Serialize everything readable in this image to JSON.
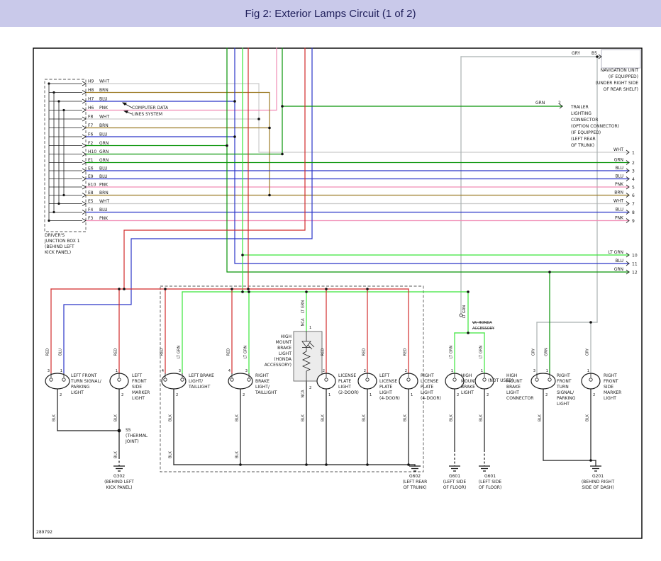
{
  "title": "Fig 2: Exterior Lamps Circuit (1 of 2)",
  "figure_number": "289792",
  "palette": {
    "RED": "#d22b2b",
    "GRN": "#089408",
    "LT GRN": "#3ae53a",
    "BLU": "#2b35c8",
    "PNK": "#f08cb4",
    "BRN": "#9c7b25",
    "WHT": "#cbcbcb",
    "GRY": "#a9b1b1",
    "BLK": "#1c1c1c",
    "header_bg": "#c9c9ea"
  },
  "junction_box": {
    "label": [
      "DRIVER'S",
      "JUNCTION BOX 1",
      "(BEHIND LEFT",
      "KICK PANEL)"
    ],
    "pins": [
      {
        "id": "H9",
        "color": "WHT"
      },
      {
        "id": "H8",
        "color": "BRN"
      },
      {
        "id": "H7",
        "color": "BLU"
      },
      {
        "id": "H6",
        "color": "PNK"
      },
      {
        "id": "F8",
        "color": "WHT"
      },
      {
        "id": "F7",
        "color": "BRN"
      },
      {
        "id": "F6",
        "color": "BLU"
      },
      {
        "id": "F2",
        "color": "GRN"
      },
      {
        "id": "H10",
        "color": "GRN"
      },
      {
        "id": "E1",
        "color": "GRN"
      },
      {
        "id": "E6",
        "color": "BLU"
      },
      {
        "id": "E9",
        "color": "BLU"
      },
      {
        "id": "E10",
        "color": "PNK"
      },
      {
        "id": "E8",
        "color": "BRN"
      },
      {
        "id": "E5",
        "color": "WHT"
      },
      {
        "id": "F4",
        "color": "BLU"
      },
      {
        "id": "F3",
        "color": "PNK"
      }
    ]
  },
  "computer_data_note": [
    "COMPUTER DATA",
    "LINES SYSTEM"
  ],
  "navigation": {
    "wire_color": "GRY",
    "pin": "B5",
    "label": [
      "NAVIGATION UNIT",
      "(IF EQUIPPED)",
      "(UNDER RIGHT SIDE",
      "OF REAR SHELF)"
    ]
  },
  "trailer": {
    "wire_color": "GRN",
    "pin": "2",
    "label": [
      "TRAILER",
      "LIGHTING",
      "CONNECTOR",
      "(OPTION CONNECTOR)",
      "(IF EQUIPPED)",
      "(LEFT REAR",
      "OF TRUNK)"
    ]
  },
  "right_edge_rows": [
    {
      "num": "1",
      "color": "WHT"
    },
    {
      "num": "2",
      "color": "GRN"
    },
    {
      "num": "3",
      "color": "BLU"
    },
    {
      "num": "4",
      "color": "BLU"
    },
    {
      "num": "5",
      "color": "PNK"
    },
    {
      "num": "6",
      "color": "BRN"
    },
    {
      "num": "7",
      "color": "WHT"
    },
    {
      "num": "8",
      "color": "BLU"
    },
    {
      "num": "9",
      "color": "PNK"
    },
    {
      "num": "10",
      "color": "LT GRN"
    },
    {
      "num": "11",
      "color": "BLU"
    },
    {
      "num": "12",
      "color": "GRN"
    }
  ],
  "hmsl_module": {
    "label": [
      "HIGH",
      "MOUNT",
      "BRAKE",
      "LIGHT",
      "(HONDA",
      "ACCESSORY)"
    ],
    "top_pin": "1",
    "bottom_pin": "2",
    "top_wire": "LT GRN",
    "bottom_wire": "BLK",
    "nca": "NCA"
  },
  "lamps": [
    {
      "name": "left-front-turn-signal-parking-light",
      "label": [
        "LEFT FRONT",
        "TURN SIGNAL/",
        "PARKING",
        "LIGHT"
      ],
      "top_pins": [
        {
          "num": "3",
          "wire": "RED"
        },
        {
          "num": "1",
          "wire": "BLU"
        }
      ],
      "bottom_pin": {
        "num": "2",
        "wire": "BLK"
      }
    },
    {
      "name": "left-front-side-marker-light",
      "label": [
        "LEFT",
        "FRONT",
        "SIDE",
        "MARKER",
        "LIGHT"
      ],
      "top_pins": [
        {
          "num": "1",
          "wire": "RED"
        }
      ],
      "bottom_pin": {
        "num": "2",
        "wire": "BLK"
      }
    },
    {
      "name": "left-brake-light-taillight",
      "label": [
        "LEFT BRAKE",
        "LIGHT/",
        "TAILLIGHT"
      ],
      "top_pins": [
        {
          "num": "4",
          "wire": "RED"
        },
        {
          "num": "3",
          "wire": "LT GRN"
        }
      ],
      "bottom_pin": {
        "num": "2",
        "wire": "BLK"
      }
    },
    {
      "name": "right-brake-light-taillight",
      "label": [
        "RIGHT",
        "BRAKE",
        "LIGHT/",
        "TAILLIGHT"
      ],
      "top_pins": [
        {
          "num": "4",
          "wire": "RED"
        },
        {
          "num": "3",
          "wire": "LT GRN"
        }
      ],
      "bottom_pin": {
        "num": "2",
        "wire": "BLK"
      }
    },
    {
      "name": "license-plate-light-2-door",
      "label": [
        "LICENSE",
        "PLATE",
        "LIGHT",
        "(2-DOOR)"
      ],
      "top_pins": [
        {
          "num": "2",
          "wire": "RED"
        }
      ],
      "bottom_pin": {
        "num": "1",
        "wire": "BLK"
      }
    },
    {
      "name": "left-license-plate-light-4-door",
      "label": [
        "LEFT",
        "LICENSE",
        "PLATE",
        "LIGHT",
        "(4-DOOR)"
      ],
      "top_pins": [
        {
          "num": "2",
          "wire": "RED"
        }
      ],
      "bottom_pin": {
        "num": "1",
        "wire": "BLK"
      }
    },
    {
      "name": "right-license-plate-light-4-door",
      "label": [
        "RIGHT",
        "LICENSE",
        "PLATE",
        "LIGHT",
        "(4-DOOR)"
      ],
      "top_pins": [
        {
          "num": "2",
          "wire": "RED"
        }
      ],
      "bottom_pin": {
        "num": "1",
        "wire": "BLK"
      }
    },
    {
      "name": "high-mount-brake-light",
      "label": [
        "HIGH",
        "MOUNT",
        "BRAKE",
        "LIGHT"
      ],
      "top_pins": [
        {
          "num": "1",
          "wire": "LT GRN"
        }
      ],
      "bottom_pin": {
        "num": "2",
        "wire": "BLK"
      }
    },
    {
      "name": "high-mount-brake-light-connector",
      "label": [
        "HIGH",
        "MOUNT",
        "BRAKE",
        "LIGHT",
        "CONNECTOR"
      ],
      "top_pins": [
        {
          "num": "1",
          "wire": "LT GRN"
        }
      ],
      "bottom_pin": {
        "num": "2",
        "wire": "BLK"
      }
    },
    {
      "name": "right-front-turn-signal-parking-light",
      "label": [
        "RIGHT",
        "FRONT",
        "TURN",
        "SIGNAL/",
        "PARKING",
        "LIGHT"
      ],
      "top_pins": [
        {
          "num": "3",
          "wire": "GRY"
        },
        {
          "num": "1",
          "wire": "GRN"
        }
      ],
      "bottom_pin": {
        "num": "2",
        "wire": "BLK"
      }
    },
    {
      "name": "right-front-side-marker-light",
      "label": [
        "RIGHT",
        "FRONT",
        "SIDE",
        "MARKER",
        "LIGHT"
      ],
      "top_pins": [
        {
          "num": "1",
          "wire": "GRY"
        }
      ],
      "bottom_pin": {
        "num": "2",
        "wire": "BLK"
      }
    }
  ],
  "notes": {
    "not_used": "(NOT USED)",
    "w_honda_accessory": [
      "W/ HONDA",
      "ACCESSORY"
    ],
    "s5": [
      "S5",
      "(THERMAL",
      "JOINT)"
    ],
    "lt_grn": "LT GRN",
    "blk": "BLK"
  },
  "grounds": [
    {
      "id": "G302",
      "label": [
        "G302",
        "(BEHIND LEFT",
        "KICK PANEL)"
      ]
    },
    {
      "id": "G602",
      "label": [
        "G602",
        "(LEFT REAR",
        "OF TRUNK)"
      ]
    },
    {
      "id": "G601",
      "label": [
        "G601",
        "(LEFT SIDE",
        "OF FLOOR)"
      ]
    },
    {
      "id": "G601",
      "label": [
        "G601",
        "(LEFT SIDE",
        "OF FLOOR)"
      ]
    },
    {
      "id": "G201",
      "label": [
        "G201",
        "(BEHIND RIGHT",
        "SIDE OF DASH)"
      ]
    }
  ]
}
